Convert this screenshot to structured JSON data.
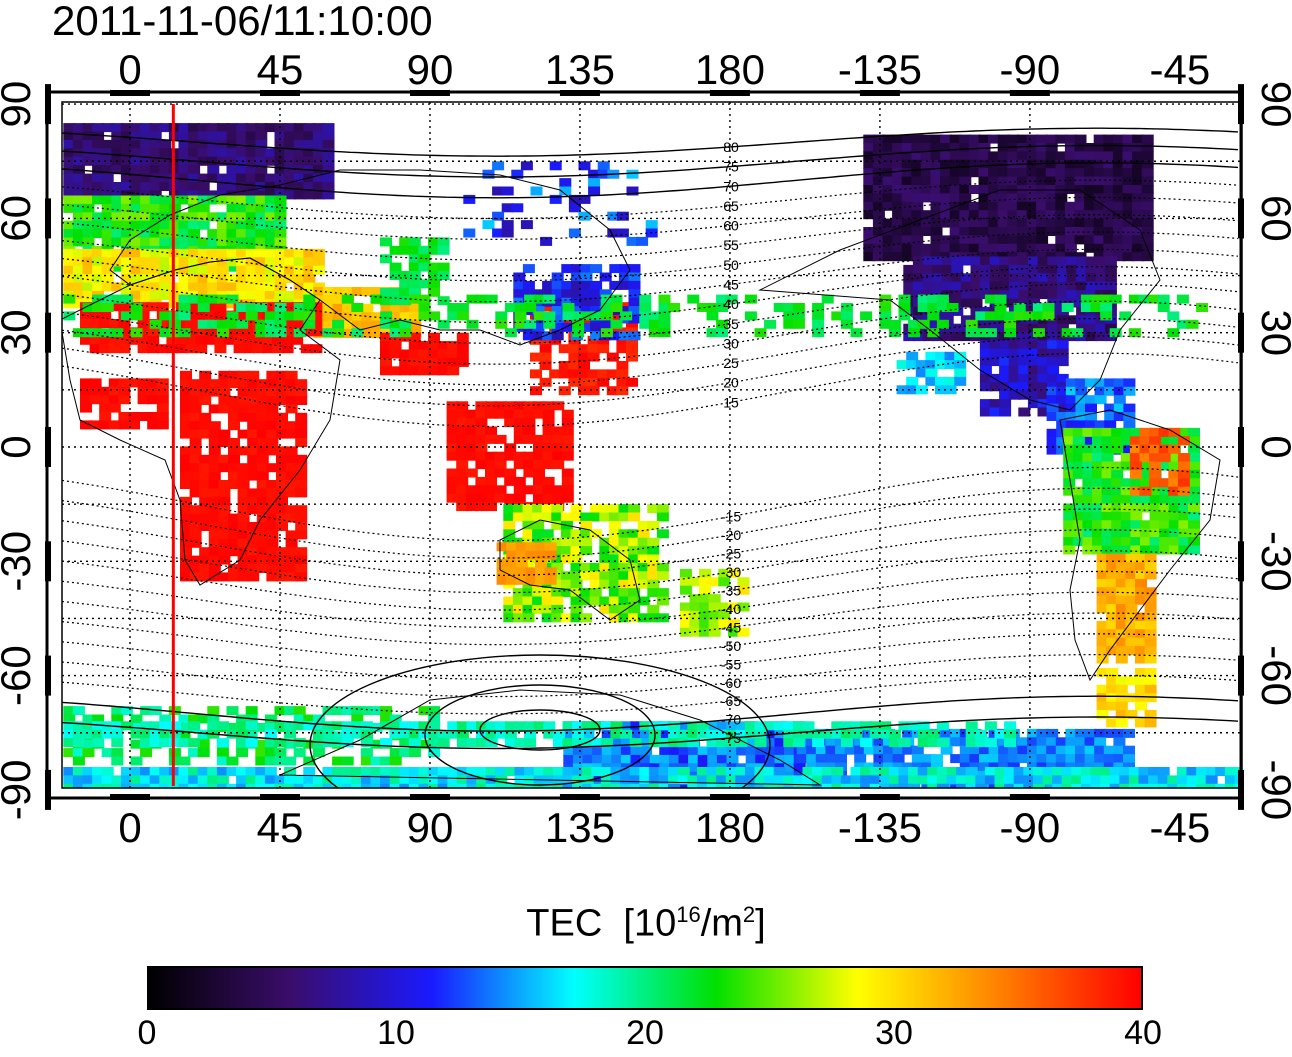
{
  "timestamp": "2011-11-06/11:10:00",
  "map": {
    "top_lon_labels": [
      "0",
      "45",
      "90",
      "135",
      "180",
      "-135",
      "-90",
      "-45"
    ],
    "bottom_lon_labels": [
      "0",
      "45",
      "90",
      "135",
      "180",
      "-135",
      "-90",
      "-45"
    ],
    "left_lat_labels": [
      "90",
      "60",
      "30",
      "0",
      "-30",
      "-60",
      "-90"
    ],
    "right_lat_labels": [
      "90",
      "60",
      "30",
      "0",
      "-30",
      "-60",
      "-90"
    ],
    "magnetic_contour_labels": [
      "80",
      "75",
      "70",
      "65",
      "60",
      "55",
      "50",
      "45",
      "40",
      "35",
      "30",
      "25",
      "20",
      "15",
      "-15",
      "-20",
      "-25",
      "-30",
      "-35",
      "-40",
      "-45",
      "-50",
      "-55",
      "-60",
      "-65",
      "-70",
      "-75"
    ],
    "terminator_longitude": 13,
    "colors": {
      "terminator": "#ff0000"
    }
  },
  "colorbar": {
    "title": "TEC",
    "unit_prefix": "[10",
    "unit_exp": "16",
    "unit_mid": "/m",
    "unit_exp2": "2",
    "unit_suffix": "]",
    "min": 0,
    "max": 40,
    "tick_labels": [
      "0",
      "10",
      "20",
      "30",
      "40"
    ],
    "stops": [
      "#000000",
      "#3a0d6b",
      "#1a1aff",
      "#00ffff",
      "#00e000",
      "#ffff00",
      "#ff8000",
      "#ff0000"
    ]
  }
}
